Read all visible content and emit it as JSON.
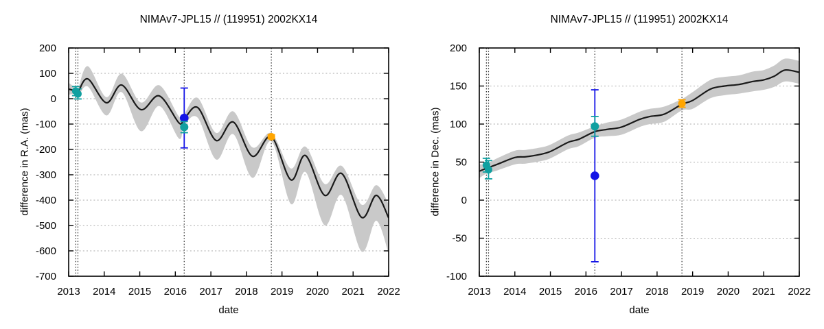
{
  "page": {
    "background": "#ffffff"
  },
  "chart_data": [
    {
      "type": "line",
      "title": "NIMAv7-JPL15 // (119951) 2002KX14",
      "xlabel": "date",
      "ylabel": "difference in R.A. (mas)",
      "xlim": [
        2013,
        2022
      ],
      "ylim": [
        -700,
        200
      ],
      "xticks": [
        2013,
        2014,
        2015,
        2016,
        2017,
        2018,
        2019,
        2020,
        2021,
        2022
      ],
      "yticks": [
        200,
        100,
        0,
        -100,
        -200,
        -300,
        -400,
        -500,
        -600,
        -700
      ],
      "grid": "horizontal-dashed",
      "legend": "none",
      "epoch_lines": [
        2013.2,
        2013.26,
        2016.25,
        2018.7
      ],
      "colors": {
        "band": "#c9c9c9",
        "curve": "#1a1a1a",
        "grid": "#a8a8a8",
        "epoch": "#3a3a3a"
      },
      "curve": {
        "x": [
          2013.0,
          2013.2,
          2013.26,
          2013.54,
          2014.06,
          2014.49,
          2015.03,
          2015.55,
          2016.1,
          2016.25,
          2016.63,
          2017.15,
          2017.63,
          2018.17,
          2018.7,
          2019.25,
          2019.66,
          2020.2,
          2020.68,
          2021.24,
          2021.65,
          2022.0
        ],
        "y": [
          38,
          30,
          25,
          78,
          -16,
          54,
          -43,
          11,
          -95,
          -80,
          -35,
          -165,
          -92,
          -227,
          -150,
          -320,
          -224,
          -381,
          -295,
          -468,
          -381,
          -470
        ],
        "band_upper": [
          63,
          42,
          37,
          128,
          6,
          99,
          -15,
          53,
          -70,
          -60,
          3,
          -135,
          -50,
          -192,
          -136,
          -275,
          -189,
          -336,
          -265,
          -418,
          -341,
          -415
        ],
        "band_lower": [
          16,
          18,
          5,
          48,
          -66,
          26,
          -128,
          -29,
          -157,
          -105,
          -75,
          -240,
          -140,
          -312,
          -168,
          -415,
          -289,
          -499,
          -380,
          -603,
          -481,
          -610
        ]
      },
      "points": [
        {
          "x": 2013.2,
          "y": 30,
          "err": 18,
          "color": "#10a0a0",
          "r": 5.5
        },
        {
          "x": 2013.26,
          "y": 19,
          "err": 20,
          "color": "#10a0a0",
          "r": 5.5
        },
        {
          "x": 2016.25,
          "y": -76,
          "err": 118,
          "color": "#1414e6",
          "r": 6.3
        },
        {
          "x": 2016.25,
          "y": -112,
          "err": 22,
          "color": "#10a0a0",
          "r": 6
        },
        {
          "x": 2018.7,
          "y": -150,
          "err": 8,
          "color": "#ffa500",
          "r": 5.5
        }
      ]
    },
    {
      "type": "line",
      "title": "NIMAv7-JPL15 // (119951) 2002KX14",
      "xlabel": "date",
      "ylabel": "difference in Dec. (mas)",
      "xlim": [
        2013,
        2022
      ],
      "ylim": [
        -100,
        200
      ],
      "xticks": [
        2013,
        2014,
        2015,
        2016,
        2017,
        2018,
        2019,
        2020,
        2021,
        2022
      ],
      "yticks": [
        200,
        150,
        100,
        50,
        0,
        -50,
        -100
      ],
      "grid": "horizontal-dashed",
      "legend": "none",
      "epoch_lines": [
        2013.2,
        2013.26,
        2016.25,
        2018.7
      ],
      "colors": {
        "band": "#c9c9c9",
        "curve": "#1a1a1a",
        "grid": "#a8a8a8",
        "epoch": "#3a3a3a"
      },
      "curve": {
        "x": [
          2013.0,
          2013.21,
          2013.5,
          2014.0,
          2014.3,
          2014.7,
          2015.0,
          2015.5,
          2015.8,
          2016.25,
          2016.6,
          2017.0,
          2017.5,
          2017.8,
          2018.2,
          2018.7,
          2019.0,
          2019.5,
          2019.9,
          2020.3,
          2020.7,
          2021.0,
          2021.3,
          2021.6,
          2022.0
        ],
        "y": [
          38,
          42,
          47,
          56,
          57,
          60,
          64,
          76,
          80,
          90,
          93,
          96,
          106,
          110,
          113,
          126,
          131,
          146,
          150,
          152,
          156,
          158,
          163,
          171,
          168
        ],
        "band_upper": [
          47,
          48,
          55,
          65,
          66,
          69,
          73,
          85,
          89,
          97,
          102,
          106,
          116,
          120,
          123,
          133,
          142,
          158,
          162,
          164,
          169,
          171,
          177,
          186,
          183
        ],
        "band_lower": [
          29,
          35,
          39,
          47,
          48,
          51,
          55,
          67,
          71,
          82,
          84,
          86,
          96,
          100,
          103,
          118,
          120,
          134,
          138,
          140,
          143,
          145,
          149,
          156,
          153
        ]
      },
      "points": [
        {
          "x": 2013.2,
          "y": 46,
          "err": 9,
          "color": "#10a0a0",
          "r": 5.5
        },
        {
          "x": 2013.26,
          "y": 40,
          "err": 12,
          "color": "#10a0a0",
          "r": 5.5
        },
        {
          "x": 2016.25,
          "y": 32,
          "err": 113,
          "color": "#1414e6",
          "r": 6.3
        },
        {
          "x": 2016.25,
          "y": 97,
          "err": 13,
          "color": "#10a0a0",
          "r": 6
        },
        {
          "x": 2018.7,
          "y": 127,
          "err": 5,
          "color": "#ffa500",
          "r": 5.5
        }
      ]
    }
  ]
}
